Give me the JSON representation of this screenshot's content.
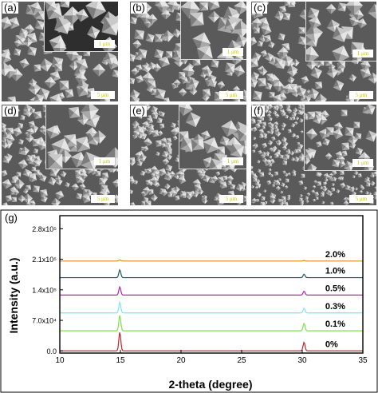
{
  "panels": [
    {
      "letter": "(a)",
      "scale_main": "5 μm",
      "scale_inset": "1 μm"
    },
    {
      "letter": "(b)",
      "scale_main": "5 μm",
      "scale_inset": "1 μm"
    },
    {
      "letter": "(c)",
      "scale_main": "5 μm",
      "scale_inset": "1 μm"
    },
    {
      "letter": "(d)",
      "scale_main": "5 μm",
      "scale_inset": "1 μm"
    },
    {
      "letter": "(e)",
      "scale_main": "5 μm",
      "scale_inset": "1 μm"
    },
    {
      "letter": "(f)",
      "scale_main": "5 μm",
      "scale_inset": "1 μm"
    }
  ],
  "xrd_panel": {
    "letter": "(g)"
  },
  "chart_data": {
    "type": "line",
    "xlabel": "2-theta (degree)",
    "ylabel": "Intensity (a.u.)",
    "xlim": [
      10,
      35
    ],
    "ylim": [
      -5000,
      310000
    ],
    "xticks": [
      10,
      15,
      20,
      25,
      30,
      35
    ],
    "yticks": [
      {
        "value": 0,
        "label": "0.0"
      },
      {
        "value": 70000,
        "label": "7.0x10⁴"
      },
      {
        "value": 140000,
        "label": "1.4x10⁵"
      },
      {
        "value": 210000,
        "label": "2.1x10⁵"
      },
      {
        "value": 280000,
        "label": "2.8x10⁵"
      }
    ],
    "series": [
      {
        "name": "0%",
        "color": "#c0262d",
        "baseline": 0,
        "peaks": [
          {
            "x": 14.95,
            "height": 43000
          },
          {
            "x": 30.15,
            "height": 20000
          }
        ]
      },
      {
        "name": "0.1%",
        "color": "#7ee24a",
        "baseline": 46000,
        "peaks": [
          {
            "x": 14.95,
            "height": 36000
          },
          {
            "x": 30.15,
            "height": 17000
          }
        ]
      },
      {
        "name": "0.3%",
        "color": "#7de6ee",
        "baseline": 87000,
        "peaks": [
          {
            "x": 14.95,
            "height": 25000
          },
          {
            "x": 30.15,
            "height": 11000
          }
        ]
      },
      {
        "name": "0.5%",
        "color": "#b325b8",
        "baseline": 128000,
        "peaks": [
          {
            "x": 14.95,
            "height": 19000
          },
          {
            "x": 30.15,
            "height": 9000
          }
        ]
      },
      {
        "name": "1.0%",
        "color": "#245a5e",
        "baseline": 168000,
        "peaks": [
          {
            "x": 14.95,
            "height": 18000
          },
          {
            "x": 30.15,
            "height": 8000
          }
        ]
      },
      {
        "name": "2.0%",
        "color": "#e08a1a",
        "baseline": 206000,
        "peaks": [
          {
            "x": 14.95,
            "height": 2500
          },
          {
            "x": 30.15,
            "height": 1200
          }
        ]
      }
    ]
  }
}
